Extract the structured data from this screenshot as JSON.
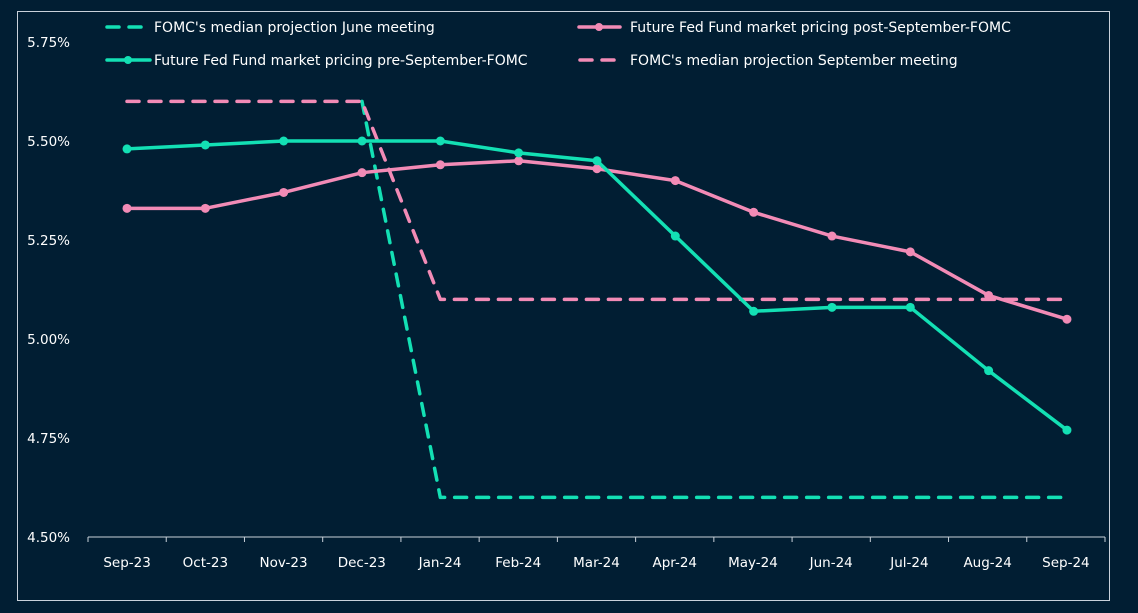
{
  "chart_data": {
    "type": "line",
    "title": "",
    "xlabel": "",
    "ylabel": "",
    "categories": [
      "Sep-23",
      "Oct-23",
      "Nov-23",
      "Dec-23",
      "Jan-24",
      "Feb-24",
      "Mar-24",
      "Apr-24",
      "May-24",
      "Jun-24",
      "Jul-24",
      "Aug-24",
      "Sep-24"
    ],
    "ylim": [
      4.5,
      5.75
    ],
    "yticks": [
      4.5,
      4.75,
      5.0,
      5.25,
      5.5,
      5.75
    ],
    "ytick_labels": [
      "4.50%",
      "4.75%",
      "5.00%",
      "5.25%",
      "5.50%",
      "5.75%"
    ],
    "grid": false,
    "legend_position": "top",
    "series": [
      {
        "name": "FOMC's median projection June meeting",
        "color": "#13e0b4",
        "style": "dashed",
        "markers": false,
        "values": [
          null,
          null,
          null,
          5.6,
          4.6,
          4.6,
          4.6,
          4.6,
          4.6,
          4.6,
          4.6,
          4.6,
          4.6
        ]
      },
      {
        "name": "Future Fed Fund market pricing post-September-FOMC",
        "color": "#f28bb6",
        "style": "solid",
        "markers": true,
        "values": [
          5.33,
          5.33,
          5.37,
          5.42,
          5.44,
          5.45,
          5.43,
          5.4,
          5.32,
          5.26,
          5.22,
          5.11,
          5.05
        ]
      },
      {
        "name": "Future Fed Fund market pricing pre-September-FOMC",
        "color": "#13e0b4",
        "style": "solid",
        "markers": true,
        "values": [
          5.48,
          5.49,
          5.5,
          5.5,
          5.5,
          5.47,
          5.45,
          5.26,
          5.07,
          5.08,
          5.08,
          4.92,
          4.77
        ]
      },
      {
        "name": "FOMC's median projection September meeting",
        "color": "#f28bb6",
        "style": "dashed",
        "markers": false,
        "values": [
          5.6,
          5.6,
          5.6,
          5.6,
          5.1,
          5.1,
          5.1,
          5.1,
          5.1,
          5.1,
          5.1,
          5.1,
          5.1
        ]
      }
    ]
  },
  "legend": {
    "items": [
      "FOMC's median projection June meeting",
      "Future Fed Fund market pricing post-September-FOMC",
      "Future Fed Fund market pricing pre-September-FOMC",
      "FOMC's median projection September meeting"
    ]
  },
  "colors": {
    "background": "#011e33",
    "teal": "#13e0b4",
    "pink": "#f28bb6",
    "axis": "#c9d1da"
  }
}
